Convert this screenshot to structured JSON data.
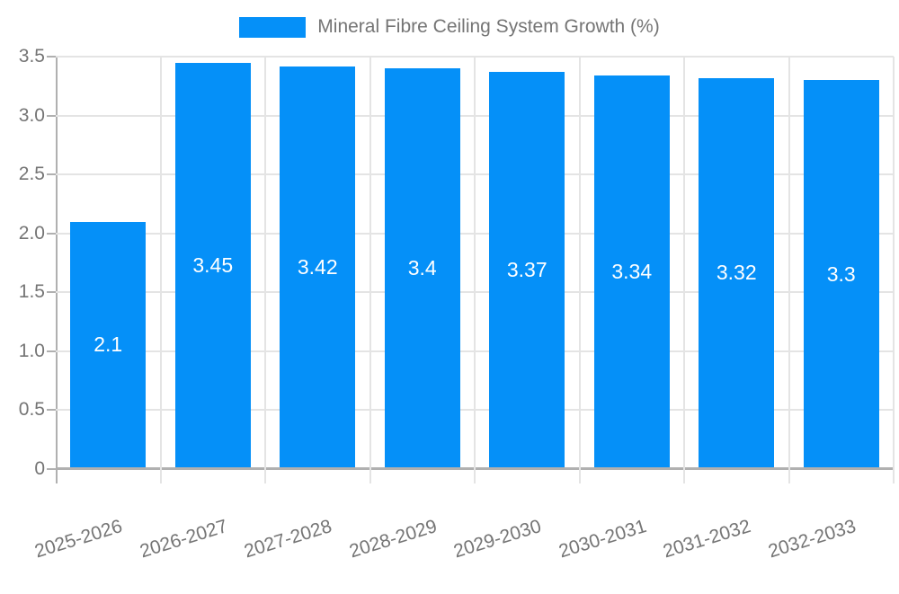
{
  "legend": {
    "label": "Mineral Fibre Ceiling System Growth (%)"
  },
  "colors": {
    "bar": "#0590f8",
    "grid": "#e4e4e4",
    "axis": "#b0b0b0",
    "text": "#757575",
    "value_text": "#ffffff",
    "background": "#ffffff"
  },
  "chart_data": {
    "type": "bar",
    "title": "Mineral Fibre Ceiling System Growth (%)",
    "categories": [
      "2025-2026",
      "2026-2027",
      "2027-2028",
      "2028-2029",
      "2029-2030",
      "2030-2031",
      "2031-2032",
      "2032-2033"
    ],
    "values": [
      2.1,
      3.45,
      3.42,
      3.4,
      3.37,
      3.34,
      3.32,
      3.3
    ],
    "value_labels": [
      "2.1",
      "3.45",
      "3.42",
      "3.4",
      "3.37",
      "3.34",
      "3.32",
      "3.3"
    ],
    "xlabel": "",
    "ylabel": "",
    "ylim": [
      0,
      3.5
    ],
    "ytick_step": 0.5,
    "ytick_labels": [
      "0",
      "0.5",
      "1.0",
      "1.5",
      "2.0",
      "2.5",
      "3.0",
      "3.5"
    ],
    "grid": true,
    "legend_position": "top",
    "xlabel_rotation_deg": -17
  }
}
